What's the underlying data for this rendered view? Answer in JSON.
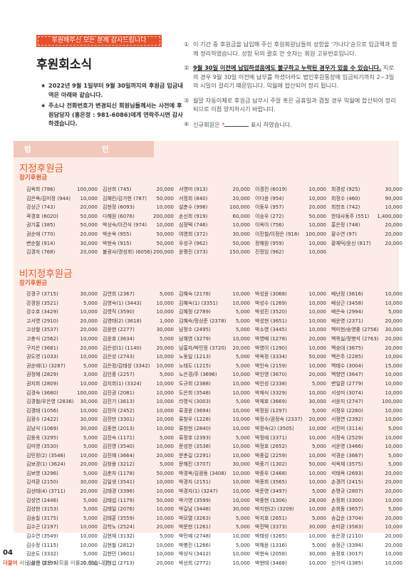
{
  "banner": "후원해주신 모든 분께 감사드립니다",
  "title": "후원회소식",
  "intro": [
    "2022년 9월 1일부터 9월 30일까지의 후원금 입금내역은 아래와 같습니다.",
    "주소나 전화번호가 변경되신 회원님들께서는 사전에 후원담당자 (홍은정 : 981-6086)에게 연락주시면 감사하겠습니다."
  ],
  "notes": [
    {
      "num": "①",
      "text": "이 기간 중 후원금을 납입해 주신 후원회원님들의 성함을 '가나다'순으로 입금액과 함께 정리하였습니다. 성함 뒤의 괄호 안 숫자는 회원 고유번호입니다."
    },
    {
      "num": "②",
      "strong": "9월 30일 이전에 납입하셨음에도 불구하고 누락된 경우가 있을 수 있습니다.",
      "text": " 지로의 경우 9월 30일 이전에 납부를 하셨더라도 법인후원통장에 입금되기까지 2~3일의 시일이 걸리기 때문입니다. 익월에 합산되어 정리 됩니다."
    },
    {
      "num": "③",
      "text": "월말 자동이체로 후원금 납부시 주말 혹은 공휴일과 겹칠 경우 익월에 합산되어 정리되므로 이점 양지하시기 바랍니다."
    },
    {
      "num": "④",
      "pre": "신규회원은 ",
      "mark": "*",
      "post": " 표시 하였습니다."
    }
  ],
  "tab": {
    "left": "법",
    "right": "인"
  },
  "designated": {
    "title": "지정후원금",
    "subtitle": "장기후원금",
    "columns": [
      [
        [
          "김옥희 (786)",
          "100,000"
        ],
        [
          "김은옥/김미정 (944)",
          "10,000"
        ],
        [
          "강상근 (743)",
          "20,000"
        ],
        [
          "곽경호 (6020)",
          "50,000"
        ],
        [
          "권기홍 (385)",
          "50,000"
        ],
        [
          "권순애 (770)",
          "20,000"
        ],
        [
          "변순철 (914)",
          "30,000"
        ],
        [
          "김경자 (768)",
          "20,000"
        ]
      ],
      [
        [
          "김선희 (745)",
          "20,000"
        ],
        [
          "김혜린/김가현 (787)",
          "50,000"
        ],
        [
          "김현정 (6093)",
          "10,000"
        ],
        [
          "다해원 (6076)",
          "200,000"
        ],
        [
          "박상숙/이건식 (974)",
          "10,000"
        ],
        [
          "박순옥 (955)",
          "50,000"
        ],
        [
          "박현숙 (915)",
          "50,000"
        ],
        [
          "불광사(명성회) (6056)",
          "200,000"
        ]
      ],
      [
        [
          "서영미 (913)",
          "20,000"
        ],
        [
          "서정희 (840)",
          "20,000"
        ],
        [
          "설춘수 (998)",
          "100,000"
        ],
        [
          "손신희 (919)",
          "60,000"
        ],
        [
          "심정택 (746)",
          "10,000"
        ],
        [
          "여영희 (372)",
          "30,000"
        ],
        [
          "우성구 (962)",
          "50,000"
        ],
        [
          "윤평진 (373)",
          "150,000"
        ]
      ],
      [
        [
          "이경진 (6019)",
          "10,000"
        ],
        [
          "이다윤 (954)",
          "10,000"
        ],
        [
          "이동우 (957)",
          "20,000"
        ],
        [
          "이승우 (272)",
          "50,000"
        ],
        [
          "이옥이 (756)",
          "10,000"
        ],
        [
          "이진철/이정은 (918)",
          "100,000"
        ],
        [
          "정해원 (959)",
          "10,000"
        ],
        [
          "진정임 (962)",
          "10,000"
        ]
      ],
      [
        [
          "최경성 (925)",
          "30,000"
        ],
        [
          "최정수 (460)",
          "90,000"
        ],
        [
          "최한조 (742)",
          "10,000"
        ],
        [
          "한대사동주 (551)",
          "1,400,000"
        ],
        [
          "홍은정 (748)",
          "20,000"
        ],
        [
          "황수연 (97)",
          "20,000"
        ],
        [
          "황재덕/윤신 (817)",
          "20,000"
        ]
      ]
    ]
  },
  "undesignated": {
    "title": "비지정후원금",
    "subtitle": "장기후원금",
    "columns": [
      [
        [
          "강경구 (3715)",
          "30,000"
        ],
        [
          "강경원 (3521)",
          "5,000"
        ],
        [
          "강수호 (3429)",
          "10,000"
        ],
        [
          "고서영 (2910)",
          "20,000"
        ],
        [
          "고상철 (3537)",
          "20,000"
        ],
        [
          "고충식 (2562)",
          "10,000"
        ],
        [
          "구지은 (3681)",
          "20,000"
        ],
        [
          "권도영 (1033)",
          "10,000"
        ],
        [
          "권순애(1) (3287)",
          "5,000"
        ],
        [
          "권정혜 (2829)",
          "3,000"
        ],
        [
          "권지희 (2809)",
          "10,000"
        ],
        [
          "김경숙 (3680)",
          "100,000"
        ],
        [
          "김경철/우은영 (2836)",
          "30,000"
        ],
        [
          "김경태 (1056)",
          "10,000"
        ],
        [
          "김광수 (2422)",
          "30,000"
        ],
        [
          "김남식 (1069)",
          "30,000"
        ],
        [
          "김동욱 (3295)",
          "5,000"
        ],
        [
          "김미영 (3530)",
          "5,000"
        ],
        [
          "김민정(2) (3546)",
          "10,000"
        ],
        [
          "김보경(1) (3624)",
          "20,000"
        ],
        [
          "김보영 (3296)",
          "5,000"
        ],
        [
          "김석환 (2150)",
          "30,000"
        ],
        [
          "김선태(4) (3711)",
          "20,000"
        ],
        [
          "김성연 (2446)",
          "5,000"
        ],
        [
          "김성현 (3153)",
          "5,000"
        ],
        [
          "김송칠 (3175)",
          "5,000"
        ],
        [
          "김수곤 (2197)",
          "10,000"
        ],
        [
          "김수연 (3549)",
          "10,000"
        ],
        [
          "김수정 (1115)",
          "10,000"
        ],
        [
          "김순도 (3332)",
          "5,000"
        ],
        [
          "김승현 (3395)",
          "20,000"
        ]
      ],
      [
        [
          "김연희 (2367)",
          "5,000"
        ],
        [
          "김영숙(1) (3443)",
          "10,000"
        ],
        [
          "김영직 (3590)",
          "10,000"
        ],
        [
          "김영태(2) (3618)",
          "1,000"
        ],
        [
          "김윤현 (2277)",
          "30,000"
        ],
        [
          "김윤호 (3634)",
          "5,000"
        ],
        [
          "김은성(1) (1140)",
          "20,000"
        ],
        [
          "김은성 (2743)",
          "10,000"
        ],
        [
          "김은정/김태성 (3342)",
          "10,000"
        ],
        [
          "김인중 (2257)",
          "5,000"
        ],
        [
          "김지희(1) (3324)",
          "10,000"
        ],
        [
          "김진권 (2081)",
          "10,000"
        ],
        [
          "김진기 (3613)",
          "10,000"
        ],
        [
          "김진아 (2452)",
          "10,000"
        ],
        [
          "김진만 (3301)",
          "10,000"
        ],
        [
          "김종현 (2013)",
          "10,000"
        ],
        [
          "김진숙 (1171)",
          "5,000"
        ],
        [
          "김진영 (3540)",
          "10,000"
        ],
        [
          "김진혜 (3664)",
          "20,000"
        ],
        [
          "김창용 (3212)",
          "5,000"
        ],
        [
          "김춘자 (1178)",
          "50,000"
        ],
        [
          "김일생 (3541)",
          "10,000"
        ],
        [
          "김태경 (3396)",
          "10,000"
        ],
        [
          "김태섭 (1179)",
          "50,000"
        ],
        [
          "김태일 (2076)",
          "10,000"
        ],
        [
          "김태훈 (3559)",
          "10,000"
        ],
        [
          "김학노 (2524)",
          "20,000"
        ],
        [
          "김현재 (3132)",
          "5,000"
        ],
        [
          "김현철 (2812)",
          "10,000"
        ],
        [
          "김현민 (3601)",
          "10,000"
        ],
        [
          "김형섭 (2713)",
          "20,000"
        ]
      ],
      [
        [
          "김혜숙 (2178)",
          "10,000"
        ],
        [
          "김혜숙(1) (3351)",
          "10,000"
        ],
        [
          "김혜정 (2789)",
          "5,000"
        ],
        [
          "김혜숙/정상준 (2378)",
          "5,000"
        ],
        [
          "남정수 (2495)",
          "5,000"
        ],
        [
          "남혜영 (3279)",
          "10,000"
        ],
        [
          "남홍자/박민정 (3720)",
          "20,000"
        ],
        [
          "노동일 (1213)",
          "5,000"
        ],
        [
          "노태도 (1215)",
          "5,000"
        ],
        [
          "노은경/주 (3696)",
          "10,000"
        ],
        [
          "도규희 (2388)",
          "10,000"
        ],
        [
          "도은희 (3548)",
          "10,000"
        ],
        [
          "라명식 (3003)",
          "5,000"
        ],
        [
          "류경윤 (3694)",
          "10,000"
        ],
        [
          "류창우 (1228)",
          "10,000"
        ],
        [
          "류창현 (2840)",
          "10,000"
        ],
        [
          "류정호 (2393)",
          "5,000"
        ],
        [
          "문성찬 (3538)",
          "10,000"
        ],
        [
          "문춘길 (2291)",
          "10,000"
        ],
        [
          "문해진 (3707)",
          "30,000"
        ],
        [
          "박경옥/김광동 (3408)",
          "10,000"
        ],
        [
          "박경자 (2151)",
          "10,000"
        ],
        [
          "박경자(1) (3247)",
          "10,000"
        ],
        [
          "박기영 (3599)",
          "10,000"
        ],
        [
          "박길남 (3448)",
          "30,000"
        ],
        [
          "박모열 (3263)",
          "5,000"
        ],
        [
          "박문현 (1261)",
          "5,000"
        ],
        [
          "박민예 (2748)",
          "10,000"
        ],
        [
          "박병진 (1266)",
          "5,000"
        ],
        [
          "박상식 (3412)",
          "10,000"
        ],
        [
          "박선희 (2772)",
          "10,000"
        ]
      ],
      [
        [
          "박성윤 (3068)",
          "10,000"
        ],
        [
          "박성수 (1269)",
          "10,000"
        ],
        [
          "박성진 (3520)",
          "10,000"
        ],
        [
          "박성현 (3651)",
          "10,000"
        ],
        [
          "박소영 (3445)",
          "10,000"
        ],
        [
          "박영배 (1278)",
          "20,000"
        ],
        [
          "박영이 (1290)",
          "10,000"
        ],
        [
          "박옥정 (3334)",
          "50,000"
        ],
        [
          "박인숙 (2159)",
          "10,000"
        ],
        [
          "박인영 (3670)",
          "20,000"
        ],
        [
          "박인성 (2338)",
          "5,000"
        ],
        [
          "박재식 (3329)",
          "10,000"
        ],
        [
          "박재호 (3669)",
          "30,000"
        ],
        [
          "박정원 (1297)",
          "5,000"
        ],
        [
          "박정수/권정숙 (2337)",
          "20,000"
        ],
        [
          "박정숙(2) (3505)",
          "10,000"
        ],
        [
          "박정애 (3371)",
          "10,000"
        ],
        [
          "박정호 (2652)",
          "5,000"
        ],
        [
          "박종길 (2259)",
          "10,000"
        ],
        [
          "박종기 (1302)",
          "50,000"
        ],
        [
          "박종우 (2468)",
          "10,000"
        ],
        [
          "박종희 (3565)",
          "10,000"
        ],
        [
          "박준영 (3497)",
          "5,000"
        ],
        [
          "박중현 (1306)",
          "28,000"
        ],
        [
          "박지현(2) (3209)",
          "10,000"
        ],
        [
          "박지호 (2651)",
          "5,000"
        ],
        [
          "박진택 (3373)",
          "30,000"
        ],
        [
          "박태성 (3265)",
          "10,000"
        ],
        [
          "박해윤 (1316)",
          "5,000"
        ],
        [
          "박현숙 (2058)",
          "30,000"
        ],
        [
          "박현태 (3468)",
          "10,000"
        ]
      ],
      [
        [
          "배난정 (3616)",
          "10,000"
        ],
        [
          "배상근 (3458)",
          "10,000"
        ],
        [
          "배은숙 (2994)",
          "5,000"
        ],
        [
          "배운영 (2371)",
          "20,000"
        ],
        [
          "백미현/송영중 (2756)",
          "30,000"
        ],
        [
          "백목실/정병석 (2763)",
          "20,000"
        ],
        [
          "백승대 (3675)",
          "20,000"
        ],
        [
          "백은주 (2285)",
          "10,000"
        ],
        [
          "백태수 (3004)",
          "15,000"
        ],
        [
          "백향연 (3647)",
          "10,000"
        ],
        [
          "변일환 (2779)",
          "10,000"
        ],
        [
          "서성미 (3074)",
          "10,000"
        ],
        [
          "서윤지 (2747)",
          "100,000"
        ],
        [
          "서정우 (2260)",
          "10,000"
        ],
        [
          "서정연 (2392)",
          "10,000"
        ],
        [
          "서진미 (3114)",
          "5,000"
        ],
        [
          "서정숙 (2529)",
          "10,000"
        ],
        [
          "서운영 (3466)",
          "10,000"
        ],
        [
          "석경순 (3667)",
          "5,000"
        ],
        [
          "석옥체 (3575)",
          "5,000"
        ],
        [
          "석태옥 (2693)",
          "20,000"
        ],
        [
          "손경려 (2415)",
          "20,000"
        ],
        [
          "손명규 (2807)",
          "20,000"
        ],
        [
          "손정희 (3300)",
          "10,000"
        ],
        [
          "손희동 (3657)",
          "5,000"
        ],
        [
          "송갑순 (3704)",
          "20,000"
        ],
        [
          "송미환 (3583)",
          "10,000"
        ],
        [
          "송은경 (2110)",
          "20,000"
        ],
        [
          "송정근 (3394)",
          "20,000"
        ],
        [
          "송정호 (3017)",
          "10,000"
        ],
        [
          "신기석 (1385)",
          "10,000"
        ]
      ]
    ]
  },
  "page_number": "04",
  "footer": {
    "brand": "더불어",
    "text": " 사는 삶은 밝은 사회를 이룰 수 있습니다"
  },
  "colors": {
    "accent": "#e8572a",
    "panel": "#fdece6",
    "tab": "#f1c9ba"
  }
}
